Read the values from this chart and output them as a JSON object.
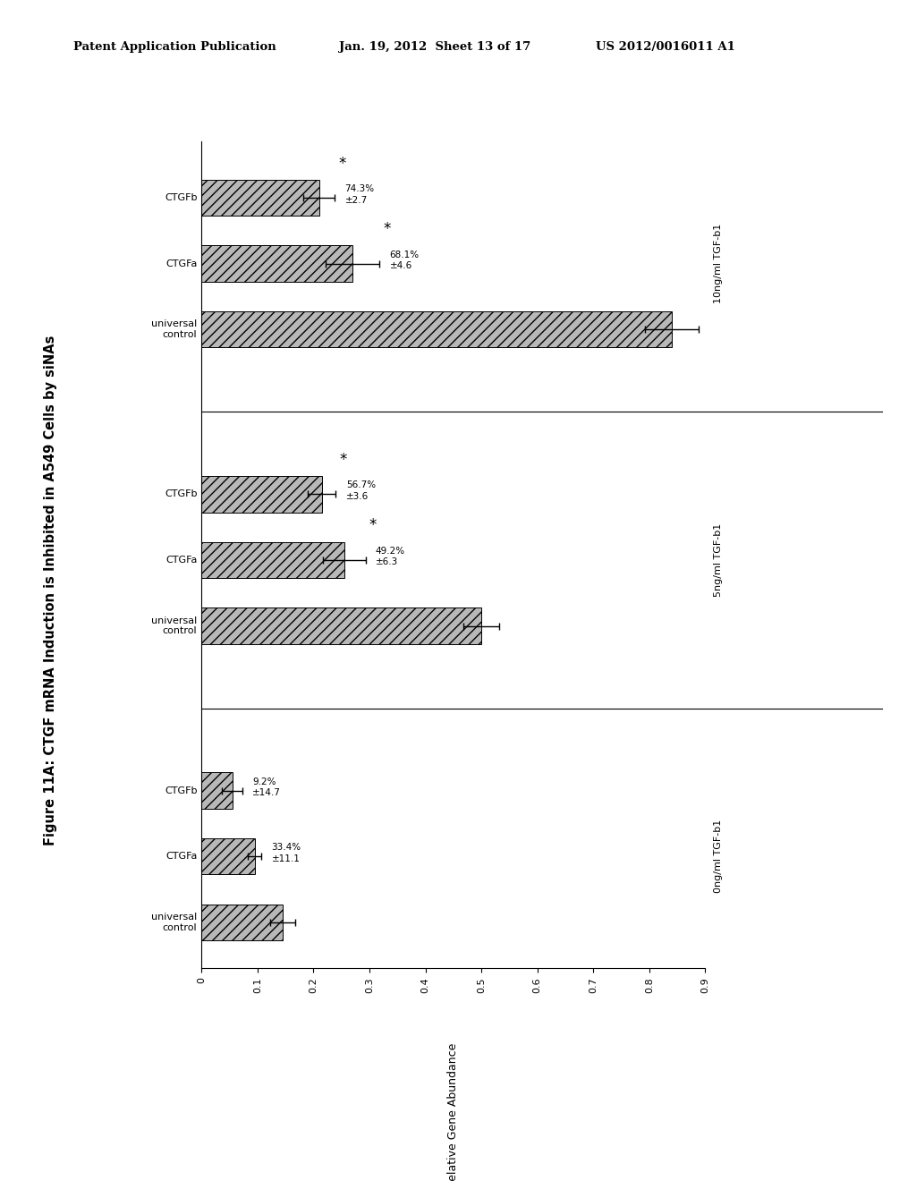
{
  "title_figure": "Figure 11A: CTGF mRNA Induction is Inhibited in A549 Cells by siNAs",
  "ylabel": "Relative Gene Abundance",
  "groups": [
    {
      "label": "0ng/ml TGF-b1",
      "bars": [
        {
          "name": "universal\ncontrol",
          "value": 0.145,
          "error": 0.022
        },
        {
          "name": "CTGFa",
          "value": 0.095,
          "error": 0.012,
          "pct": "33.4%\n±11.1",
          "sig": false
        },
        {
          "name": "CTGFb",
          "value": 0.055,
          "error": 0.018,
          "pct": "9.2%\n±14.7",
          "sig": false
        }
      ]
    },
    {
      "label": "5ng/ml TGF-b1",
      "bars": [
        {
          "name": "universal\ncontrol",
          "value": 0.5,
          "error": 0.032
        },
        {
          "name": "CTGFa",
          "value": 0.255,
          "error": 0.038,
          "pct": "49.2%\n±6.3",
          "sig": true
        },
        {
          "name": "CTGFb",
          "value": 0.215,
          "error": 0.025,
          "pct": "56.7%\n±3.6",
          "sig": true
        }
      ]
    },
    {
      "label": "10ng/ml TGF-b1",
      "bars": [
        {
          "name": "universal\ncontrol",
          "value": 0.84,
          "error": 0.048
        },
        {
          "name": "CTGFa",
          "value": 0.27,
          "error": 0.048,
          "pct": "68.1%\n±4.6",
          "sig": true
        },
        {
          "name": "CTGFb",
          "value": 0.21,
          "error": 0.028,
          "pct": "74.3%\n±2.7",
          "sig": true
        }
      ]
    }
  ],
  "bar_color": "#b8b8b8",
  "background_color": "#ffffff",
  "patent_text": "Patent Application Publication",
  "patent_date": "Jan. 19, 2012  Sheet 13 of 17",
  "patent_number": "US 2012/0016011 A1"
}
